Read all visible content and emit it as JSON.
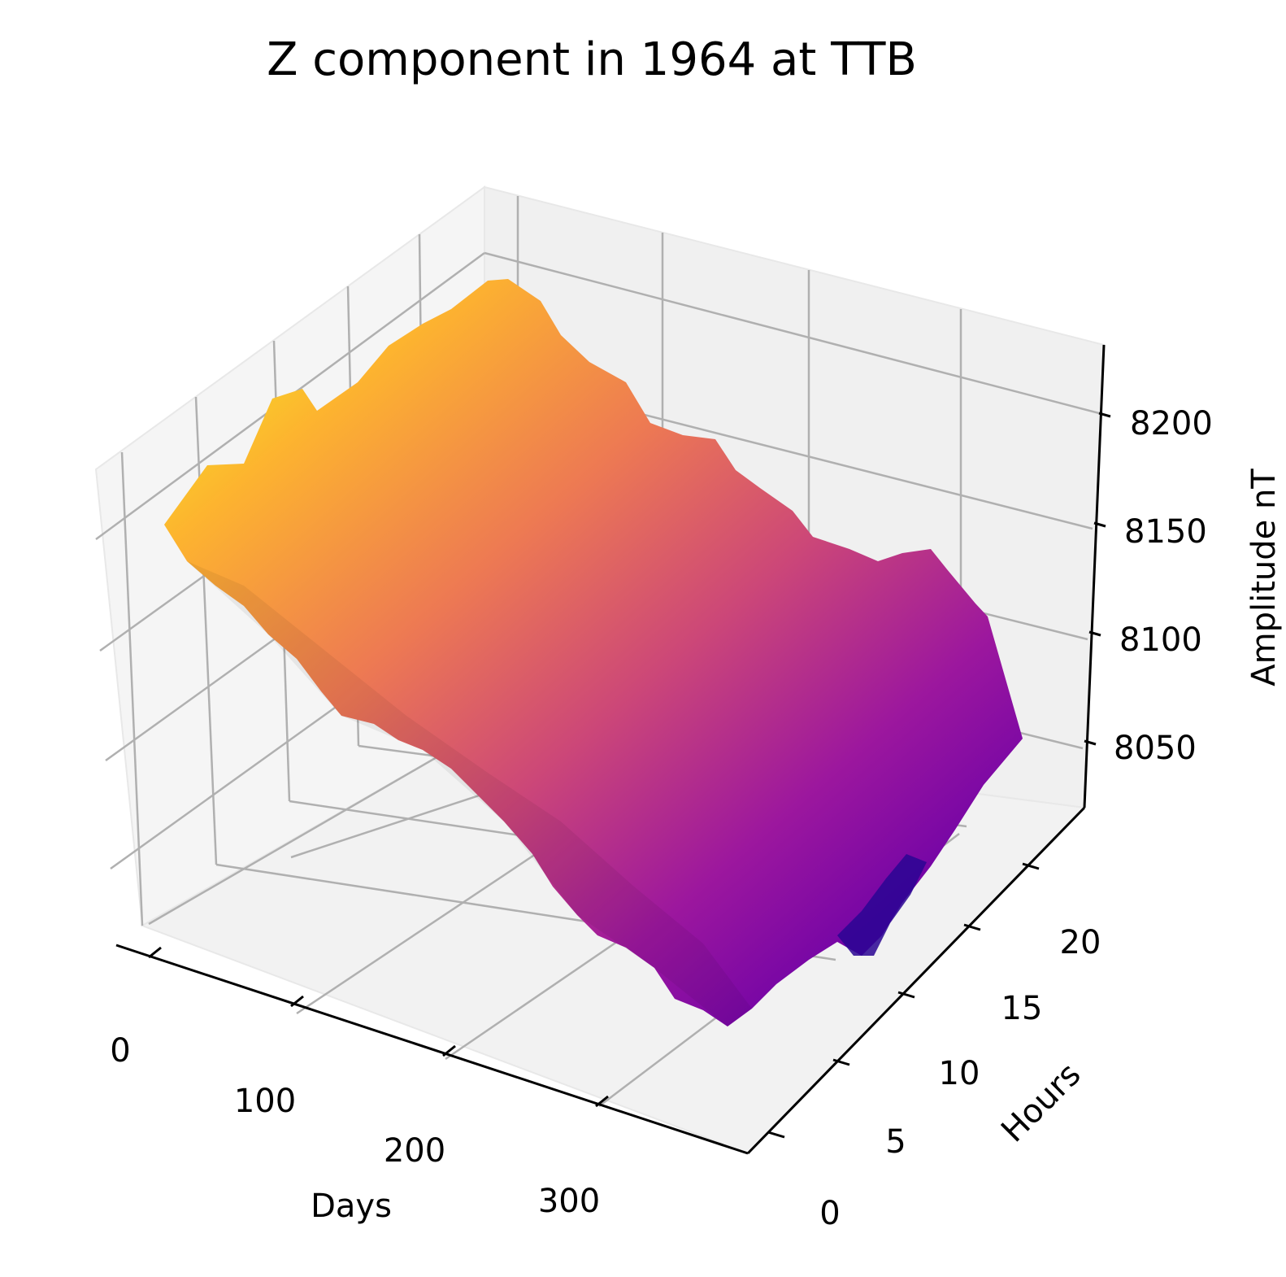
{
  "chart_data": {
    "type": "surface",
    "title": "Z component in 1964 at TTB",
    "xlabel": "Days",
    "ylabel": "Hours",
    "zlabel": "Amplitude nT",
    "x_ticks": [
      "0",
      "100",
      "200",
      "300"
    ],
    "y_ticks": [
      "0",
      "5",
      "10",
      "15",
      "20"
    ],
    "z_ticks": [
      "8050",
      "8100",
      "8150",
      "8200"
    ],
    "xlim": [
      0,
      365
    ],
    "ylim": [
      0,
      23
    ],
    "zlim": [
      8020,
      8230
    ],
    "colormap": "plasma",
    "grid": true,
    "trend": "Amplitude decreases from about 8155 nT near day 0 to about 8040 nT near day 365; nearly constant across hours, with a dip to about 8000 nT around day 300–330, hours 15–22",
    "surface_profile_by_day": [
      {
        "day": 0,
        "amplitude": 8155
      },
      {
        "day": 30,
        "amplitude": 8150
      },
      {
        "day": 60,
        "amplitude": 8155
      },
      {
        "day": 90,
        "amplitude": 8140
      },
      {
        "day": 120,
        "amplitude": 8120
      },
      {
        "day": 150,
        "amplitude": 8110
      },
      {
        "day": 180,
        "amplitude": 8095
      },
      {
        "day": 210,
        "amplitude": 8085
      },
      {
        "day": 240,
        "amplitude": 8075
      },
      {
        "day": 270,
        "amplitude": 8060
      },
      {
        "day": 300,
        "amplitude": 8050
      },
      {
        "day": 330,
        "amplitude": 8040
      },
      {
        "day": 365,
        "amplitude": 8040
      }
    ]
  }
}
